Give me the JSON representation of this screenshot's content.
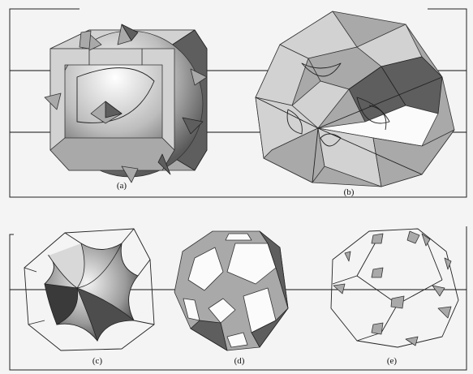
{
  "figure": {
    "captions": {
      "a": "(a)",
      "b": "(b)",
      "c": "(c)",
      "d": "(d)",
      "e": "(e)"
    }
  },
  "colors": {
    "background": "#f4f4f4",
    "line": "#222222",
    "face_light": "#d2d2d2",
    "face_mid": "#a9a9a9",
    "face_dark": "#5e5e5e"
  }
}
